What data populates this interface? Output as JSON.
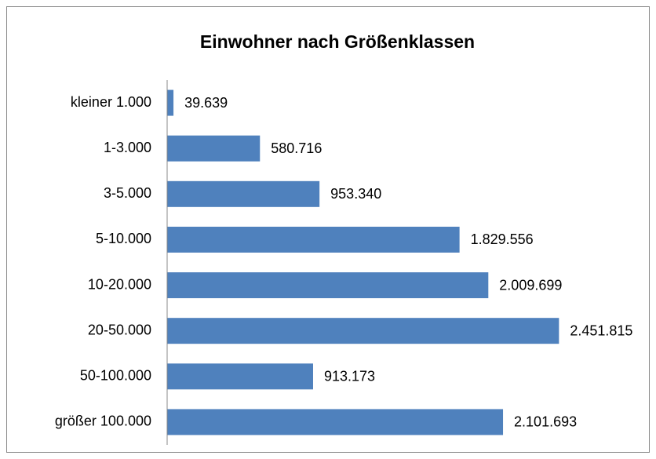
{
  "chart_data": {
    "type": "bar",
    "orientation": "horizontal",
    "title": "Einwohner nach Größenklassen",
    "categories": [
      "kleiner 1.000",
      "1-3.000",
      "3-5.000",
      "5-10.000",
      "10-20.000",
      "20-50.000",
      "50-100.000",
      "größer 100.000"
    ],
    "values": [
      39639,
      580716,
      953340,
      1829556,
      2009699,
      2451815,
      913173,
      2101693
    ],
    "value_labels": [
      "39.639",
      "580.716",
      "953.340",
      "1.829.556",
      "2.009.699",
      "2.451.815",
      "913.173",
      "2.101.693"
    ],
    "color": "#4f81bd",
    "xlim": [
      0,
      3000000
    ]
  }
}
